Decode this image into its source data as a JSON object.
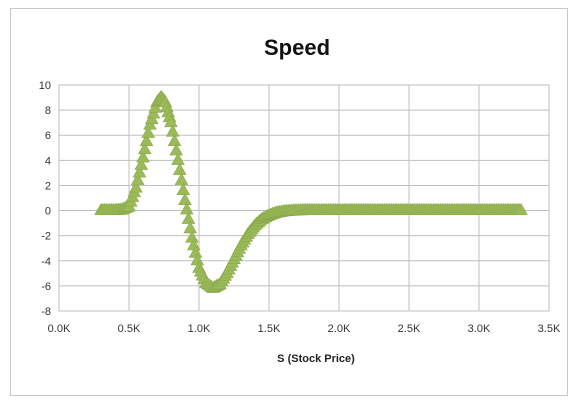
{
  "chart_data": {
    "type": "scatter",
    "title": "Speed",
    "xlabel": "S (Stock Price)",
    "ylabel": "",
    "xlim": [
      0,
      3500
    ],
    "ylim": [
      -8,
      10
    ],
    "xticks": [
      0,
      500,
      1000,
      1500,
      2000,
      2500,
      3000,
      3500
    ],
    "xtick_labels": [
      "0.0K",
      "0.5K",
      "1.0K",
      "1.5K",
      "2.0K",
      "2.5K",
      "3.0K",
      "3.5K"
    ],
    "yticks": [
      -8,
      -6,
      -4,
      -2,
      0,
      2,
      4,
      6,
      8,
      10
    ],
    "ytick_labels": [
      "-8",
      "-6",
      "-4",
      "-2",
      "0",
      "2",
      "4",
      "6",
      "8",
      "10"
    ],
    "grid": true,
    "legend": "none",
    "marker": "triangle",
    "color": "#9bbb59",
    "series": [
      {
        "x": [
          300,
          350,
          400,
          450,
          500,
          550,
          600,
          650,
          700,
          730,
          760,
          800,
          850,
          900,
          950,
          1000,
          1050,
          1100,
          1150,
          1200,
          1250,
          1300,
          1350,
          1400,
          1450,
          1500,
          1550,
          1600,
          1650,
          1700,
          1750,
          1800,
          1850,
          1900,
          1950,
          2000,
          2050,
          2100,
          2150,
          2200,
          2250,
          2300,
          2350,
          2400,
          2450,
          2500,
          2550,
          2600,
          2650,
          2700,
          2750,
          2800,
          2850,
          2900,
          2950,
          3000,
          3050,
          3100,
          3150,
          3200,
          3250,
          3300
        ],
        "y": [
          0.0,
          0.0,
          0.0,
          0.05,
          0.3,
          1.8,
          4.2,
          6.8,
          8.6,
          9.0,
          8.6,
          7.0,
          4.0,
          0.8,
          -2.2,
          -4.6,
          -5.8,
          -6.2,
          -5.9,
          -5.0,
          -3.9,
          -2.8,
          -1.9,
          -1.2,
          -0.7,
          -0.4,
          -0.2,
          -0.1,
          -0.05,
          -0.02,
          0.0,
          0.0,
          0.0,
          0.0,
          0.0,
          0.0,
          0.0,
          0.0,
          0.0,
          0.0,
          0.0,
          0.0,
          0.0,
          0.0,
          0.0,
          0.0,
          0.0,
          0.0,
          0.0,
          0.0,
          0.0,
          0.0,
          0.0,
          0.0,
          0.0,
          0.0,
          0.0,
          0.0,
          0.0,
          0.0,
          0.0,
          0.0
        ]
      }
    ]
  }
}
